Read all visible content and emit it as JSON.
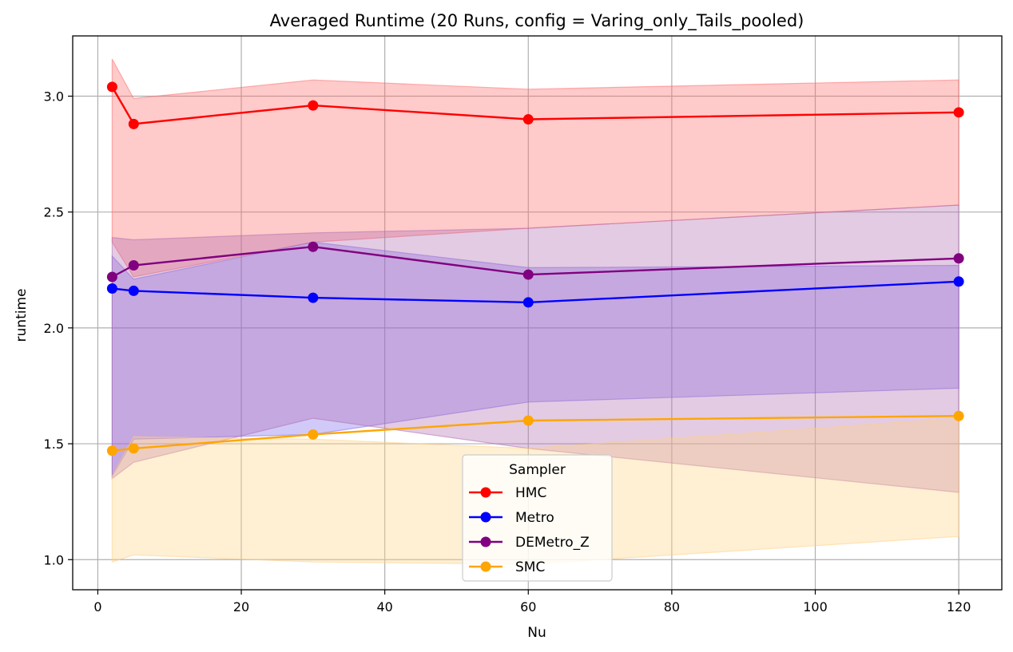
{
  "chart_data": {
    "type": "line",
    "title": "Averaged Runtime (20 Runs, config = Varing_only_Tails_pooled)",
    "xlabel": "Nu",
    "ylabel": "runtime",
    "xlim": [
      -3.5,
      126
    ],
    "ylim": [
      0.87,
      3.26
    ],
    "xticks": [
      0,
      20,
      40,
      60,
      80,
      100,
      120
    ],
    "yticks": [
      1.0,
      1.5,
      2.0,
      2.5,
      3.0
    ],
    "xtick_labels": [
      "0",
      "20",
      "40",
      "60",
      "80",
      "100",
      "120"
    ],
    "ytick_labels": [
      "1.0",
      "1.5",
      "2.0",
      "2.5",
      "3.0"
    ],
    "grid": true,
    "legend": {
      "title": "Sampler",
      "placement": "lower-center"
    },
    "x": [
      2,
      5,
      30,
      60,
      120
    ],
    "series": [
      {
        "name": "HMC",
        "color": "#ff0000",
        "band_color": "#ff6666",
        "values": [
          3.04,
          2.88,
          2.96,
          2.9,
          2.93
        ],
        "lower": [
          2.37,
          2.22,
          2.37,
          2.43,
          2.53
        ],
        "upper": [
          3.16,
          2.99,
          3.07,
          3.03,
          3.07
        ]
      },
      {
        "name": "Metro",
        "color": "#0000ff",
        "band_color": "#7b68ee",
        "values": [
          2.17,
          2.16,
          2.13,
          2.11,
          2.2
        ],
        "lower": [
          1.36,
          1.52,
          1.54,
          1.68,
          1.74
        ],
        "upper": [
          2.31,
          2.21,
          2.37,
          2.26,
          2.27
        ]
      },
      {
        "name": "DEMetro_Z",
        "color": "#800080",
        "band_color": "#b06ab0",
        "values": [
          2.22,
          2.27,
          2.35,
          2.23,
          2.3
        ],
        "lower": [
          1.35,
          1.42,
          1.61,
          1.48,
          1.29
        ],
        "upper": [
          2.39,
          2.38,
          2.41,
          2.43,
          2.53
        ]
      },
      {
        "name": "SMC",
        "color": "#ffa500",
        "band_color": "#ffd080",
        "values": [
          1.47,
          1.48,
          1.54,
          1.6,
          1.62
        ],
        "lower": [
          0.99,
          1.02,
          0.99,
          0.98,
          1.1
        ],
        "upper": [
          1.36,
          1.53,
          1.52,
          1.48,
          1.61
        ]
      }
    ]
  }
}
